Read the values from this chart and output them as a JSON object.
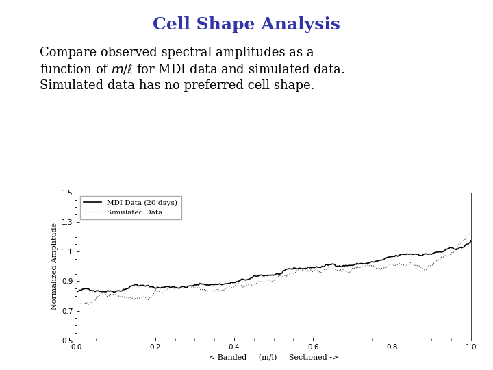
{
  "title": "Cell Shape Analysis",
  "title_color": "#3333AA",
  "title_fontsize": 18,
  "title_bold": true,
  "subtitle_fontsize": 13,
  "xlabel": "< Banded     (m/l)     Sectioned ->",
  "ylabel": "Normalized Amplitude",
  "xlim": [
    0.0,
    1.0
  ],
  "ylim": [
    0.5,
    1.5
  ],
  "yticks": [
    0.5,
    0.7,
    0.9,
    1.1,
    1.3,
    1.5
  ],
  "xticks": [
    0.0,
    0.2,
    0.4,
    0.6,
    0.8,
    1.0
  ],
  "legend_labels": [
    "MDI Data (20 days)",
    "Simulated Data"
  ],
  "mdi_color": "#000000",
  "sim_color": "#333333",
  "background": "#ffffff",
  "n_points": 400
}
